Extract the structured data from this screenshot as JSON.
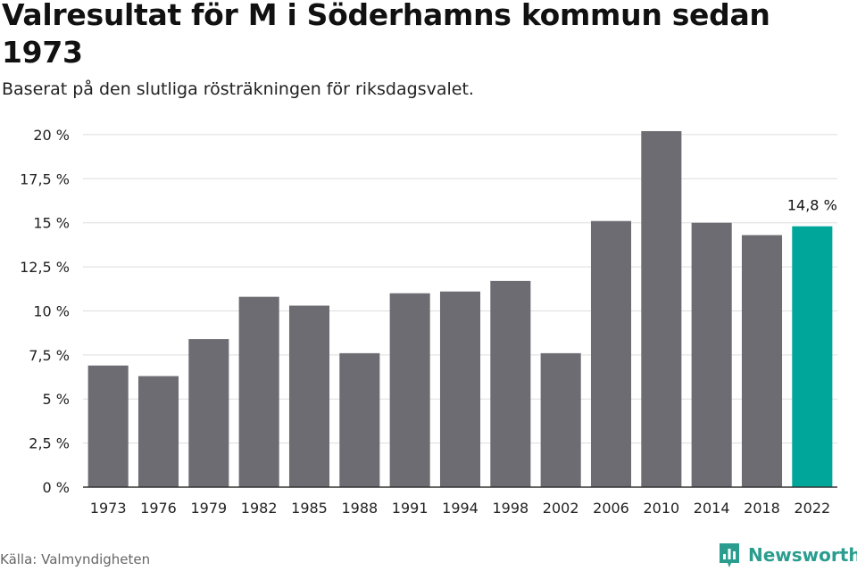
{
  "title": "Valresultat för M i Söderhamns kommun sedan 1973",
  "subtitle": "Baserat på den slutliga rösträkningen för riksdagsvalet.",
  "source": "Källa: Valmyndigheten",
  "brand": "Newsworthy",
  "colors": {
    "bar": "#6d6c72",
    "highlight": "#00a699",
    "grid": "#dddddd",
    "axis": "#333333",
    "brand": "#2a9d8f"
  },
  "chart_data": {
    "type": "bar",
    "categories": [
      "1973",
      "1976",
      "1979",
      "1982",
      "1985",
      "1988",
      "1991",
      "1994",
      "1998",
      "2002",
      "2006",
      "2010",
      "2014",
      "2018",
      "2022"
    ],
    "values": [
      6.9,
      6.3,
      8.4,
      10.8,
      10.3,
      7.6,
      11.0,
      11.1,
      11.7,
      7.6,
      15.1,
      20.2,
      15.0,
      14.3,
      14.8
    ],
    "highlight_index": 14,
    "data_labels": [
      {
        "index": 14,
        "text": "14,8 %"
      }
    ],
    "y_ticks": [
      0,
      2.5,
      5,
      7.5,
      10,
      12.5,
      15,
      17.5,
      20
    ],
    "y_tick_labels": [
      "0 %",
      "2,5 %",
      "5 %",
      "7,5 %",
      "10 %",
      "12,5 %",
      "15 %",
      "17,5 %",
      "20 %"
    ],
    "ylim": [
      0,
      20.3
    ],
    "grid": true,
    "legend": "none"
  }
}
